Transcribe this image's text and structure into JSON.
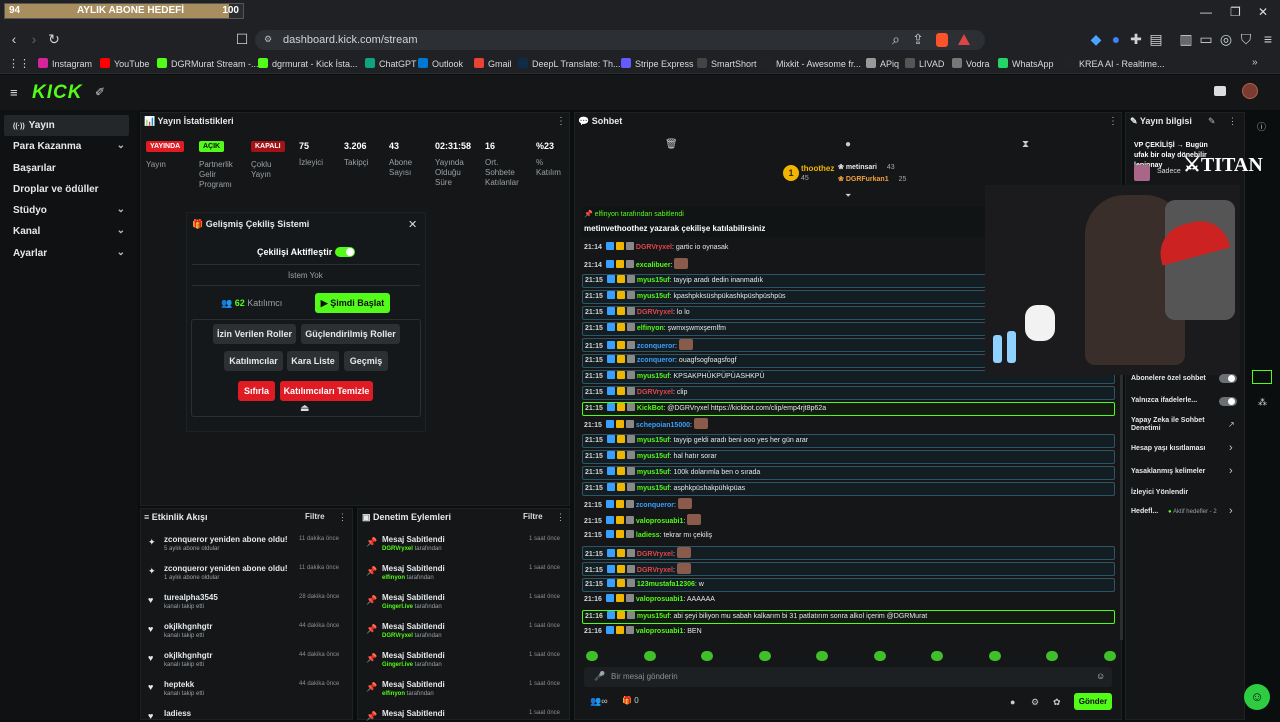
{
  "browser": {
    "goal_left": "94",
    "goal_title": "AYLIK ABONE HEDEFİ",
    "goal_right": "100",
    "goal_progress": 0.94,
    "url": "dashboard.kick.com/stream",
    "bookmarks": [
      "Instagram",
      "YouTube",
      "DGRMurat Stream -...",
      "dgrmurat - Kick İsta...",
      "ChatGPT",
      "Outlook",
      "Gmail",
      "DeepL Translate: Th...",
      "Stripe Express",
      "SmartShort",
      "Mixkit - Awesome fr...",
      "APiq",
      "LIVAD",
      "Vodra",
      "WhatsApp",
      "KREA AI - Realtime..."
    ]
  },
  "sidebar": {
    "items": [
      {
        "label": "Yayın",
        "active": true
      },
      {
        "label": "Para Kazanma",
        "chevron": true
      },
      {
        "label": "Başarılar"
      },
      {
        "label": "Droplar ve ödüller"
      },
      {
        "label": "Stüdyo",
        "chevron": true
      },
      {
        "label": "Kanal",
        "chevron": true
      },
      {
        "label": "Ayarlar",
        "chevron": true
      }
    ]
  },
  "stats": {
    "title": "Yayın İstatistikleri",
    "live_badge": "YAYINDA",
    "live_label": "Yayın",
    "partner_badge": "AÇIK",
    "partner_label": [
      "Partnerlik",
      "Gelir",
      "Programı"
    ],
    "multi_badge": "KAPALI",
    "multi_label": [
      "Çoklu",
      "Yayın"
    ],
    "cols": [
      {
        "value": "75",
        "label": [
          "İzleyici"
        ]
      },
      {
        "value": "3.206",
        "label": [
          "Takipçi"
        ]
      },
      {
        "value": "43",
        "label": [
          "Abone",
          "Sayısı"
        ]
      },
      {
        "value": "02:31:58",
        "label": [
          "Yayında",
          "Olduğu",
          "Süre"
        ]
      },
      {
        "value": "16",
        "label": [
          "Ort.",
          "Sohbete",
          "Katılanlar"
        ]
      },
      {
        "value": "%23",
        "label": [
          "%",
          "Katılım"
        ]
      }
    ]
  },
  "giveaway": {
    "title": "Gelişmiş Çekiliş Sistemi",
    "toggle_label": "Çekilişi Aktifleştir",
    "no_item": "İstem Yok",
    "count": "62",
    "count_label": "Katılımcı",
    "start": "Şimdi Başlat",
    "b1": "İzin Verilen Roller",
    "b2": "Güçlendirilmiş Roller",
    "b3": "Katılımcılar",
    "b4": "Kara Liste",
    "b5": "Geçmiş",
    "reset": "Sıfırla",
    "clear": "Katılımcıları Temizle"
  },
  "activity": {
    "title": "Etkinlik Akışı",
    "filter": "Filtre",
    "items": [
      {
        "t": "zconqueror yeniden abone oldu!",
        "s": "5 aylık abone oldular",
        "d": "11 dakika önce",
        "i": "✦"
      },
      {
        "t": "zconqueror yeniden abone oldu!",
        "s": "1 aylık abone oldular",
        "d": "11 dakika önce",
        "i": "✦"
      },
      {
        "t": "turealpha3545",
        "s": "kanalı takip etti",
        "d": "28 dakika önce",
        "i": "♥"
      },
      {
        "t": "okjlkhgnhgtr",
        "s": "kanalı takip etti",
        "d": "44 dakika önce",
        "i": "♥"
      },
      {
        "t": "okjlkhgnhgtr",
        "s": "kanalı takip etti",
        "d": "44 dakika önce",
        "i": "♥"
      },
      {
        "t": "heptekk",
        "s": "kanalı takip etti",
        "d": "44 dakika önce",
        "i": "♥"
      },
      {
        "t": "ladiess",
        "s": "",
        "d": "",
        "i": "♥"
      }
    ]
  },
  "moderation": {
    "title": "Denetim Eylemleri",
    "filter": "Filtre",
    "items": [
      {
        "t": "Mesaj Sabitlendi",
        "u": "DGRVryxel",
        "s": "tarafından",
        "d": "1 saat önce"
      },
      {
        "t": "Mesaj Sabitlendi",
        "u": "elfinyon",
        "s": "tarafından",
        "d": "1 saat önce"
      },
      {
        "t": "Mesaj Sabitlendi",
        "u": "Gingerl.ive",
        "s": "tarafından",
        "d": "1 saat önce"
      },
      {
        "t": "Mesaj Sabitlendi",
        "u": "DGRVryxel",
        "s": "tarafından",
        "d": "1 saat önce"
      },
      {
        "t": "Mesaj Sabitlendi",
        "u": "Gingerl.ive",
        "s": "tarafından",
        "d": "1 saat önce"
      },
      {
        "t": "Mesaj Sabitlendi",
        "u": "elfinyon",
        "s": "tarafından",
        "d": "1 saat önce"
      },
      {
        "t": "Mesaj Sabitlendi",
        "u": "",
        "s": "",
        "d": "1 saat önce"
      }
    ]
  },
  "chat": {
    "title": "Sohbet",
    "top": [
      {
        "name": "thoothez",
        "count": "45"
      },
      {
        "name": "metinsari",
        "count": "43"
      },
      {
        "name": "DGRFurkan1",
        "count": "25"
      }
    ],
    "pinned_by": "elfinyon tarafından sabitlendi",
    "pinned_text": "metinvethoothez yazarak çekilişe katılabilirsiniz",
    "lines": [
      {
        "ts": "21:14",
        "u": "DGRVryxel",
        "c": "#e0464e",
        "m": "gartic io oynasak",
        "hl": false
      },
      {
        "ts": "21:14",
        "u": "excalibuer",
        "c": "#53fc18",
        "m": "",
        "hl": false,
        "emote": true
      },
      {
        "ts": "21:15",
        "u": "myus15uf",
        "c": "#53fc18",
        "m": "tayyip aradı dedin inanmadık",
        "hl": true
      },
      {
        "ts": "21:15",
        "u": "myus15uf",
        "c": "#53fc18",
        "m": "kpashpkksüshpükashkpüshpüshpüs",
        "hl": true
      },
      {
        "ts": "21:15",
        "u": "DGRVryxel",
        "c": "#e0464e",
        "m": "lo lo",
        "hl": true
      },
      {
        "ts": "21:15",
        "u": "elfinyon",
        "c": "#53fc18",
        "m": "şwmxşwmxşemlfm",
        "hl": true
      },
      {
        "ts": "21:15",
        "u": "zconqueror",
        "c": "#3aa0ff",
        "m": "",
        "hl": true,
        "emote": true
      },
      {
        "ts": "21:15",
        "u": "zconqueror",
        "c": "#3aa0ff",
        "m": "ouagfsogfoagsfogf",
        "hl": true
      },
      {
        "ts": "21:15",
        "u": "myus15uf",
        "c": "#53fc18",
        "m": "KPSAKPHÜKPÜPÜASHKPÜ",
        "hl": true
      },
      {
        "ts": "21:15",
        "u": "DGRVryxel",
        "c": "#e0464e",
        "m": "clip",
        "hl": true
      },
      {
        "ts": "21:15",
        "u": "KickBot",
        "c": "#53fc18",
        "m": "@DGRVryxel https://kickbot.com/clip/emp4rjt8p62a",
        "hl": "g"
      },
      {
        "ts": "21:15",
        "u": "schepoian15000",
        "c": "#3aa0ff",
        "m": "",
        "hl": false,
        "emote": true
      },
      {
        "ts": "21:15",
        "u": "myus15uf",
        "c": "#53fc18",
        "m": "tayyip geldi aradı beni ooo yes her gün arar",
        "hl": true
      },
      {
        "ts": "21:15",
        "u": "myus15uf",
        "c": "#53fc18",
        "m": "hal hatır sorar",
        "hl": true
      },
      {
        "ts": "21:15",
        "u": "myus15uf",
        "c": "#53fc18",
        "m": "100k dolarımla ben o sırada",
        "hl": true
      },
      {
        "ts": "21:15",
        "u": "myus15uf",
        "c": "#53fc18",
        "m": "asphkpüshakpühkpüas",
        "hl": true
      },
      {
        "ts": "21:15",
        "u": "zconqueror",
        "c": "#3aa0ff",
        "m": "",
        "hl": false,
        "emote": true
      },
      {
        "ts": "21:15",
        "u": "valoprosuabi1",
        "c": "#53fc18",
        "m": "",
        "hl": false,
        "emote": true
      },
      {
        "ts": "21:15",
        "u": "ladiess",
        "c": "#53fc18",
        "m": "tekrar mı çekiliş",
        "hl": false
      },
      {
        "ts": "21:15",
        "u": "DGRVryxel",
        "c": "#e0464e",
        "m": "",
        "hl": true,
        "emote": true
      },
      {
        "ts": "21:15",
        "u": "DGRVryxel",
        "c": "#e0464e",
        "m": "",
        "hl": true,
        "emote": true
      },
      {
        "ts": "21:15",
        "u": "123mustafa12306",
        "c": "#53fc18",
        "m": "w",
        "hl": true
      },
      {
        "ts": "21:16",
        "u": "valoprosuabi1",
        "c": "#53fc18",
        "m": "AAAAAA",
        "hl": false
      },
      {
        "ts": "21:16",
        "u": "myus15uf",
        "c": "#53fc18",
        "m": "abi şeyi biliyon mu sabah kalkarım bi 31 patlatırım sonra alkol içerim @DGRMurat",
        "hl": "g"
      },
      {
        "ts": "21:16",
        "u": "valoprosuabi1",
        "c": "#53fc18",
        "m": "BEN",
        "hl": false
      }
    ],
    "placeholder": "Bir mesaj gönderin",
    "send": "Gönder",
    "gift_count": "0"
  },
  "info": {
    "title": "Yayın bilgisi",
    "stream_title": "VP ÇEKİLİŞİ → Bugün ufak bir olay dönebilir lepinnay",
    "stream_sub": "Sadece",
    "opt1": "Abonelere özel sohbet",
    "opt2": "Yalnızca ifadelerle...",
    "opt3": "Yapay Zeka ile Sohbet Denetimi",
    "opt4": "Hesap yaşı kısıtlaması",
    "opt5": "Yasaklanmış kelimeler",
    "opt6": "İzleyici Yönlendir",
    "opt7": "Hedefl...",
    "opt7_sub": "Aktif hedefler - 2"
  },
  "colors": {
    "kick_green": "#53fc18",
    "live_red": "#e01b24",
    "bg": "#0b0e0f"
  }
}
